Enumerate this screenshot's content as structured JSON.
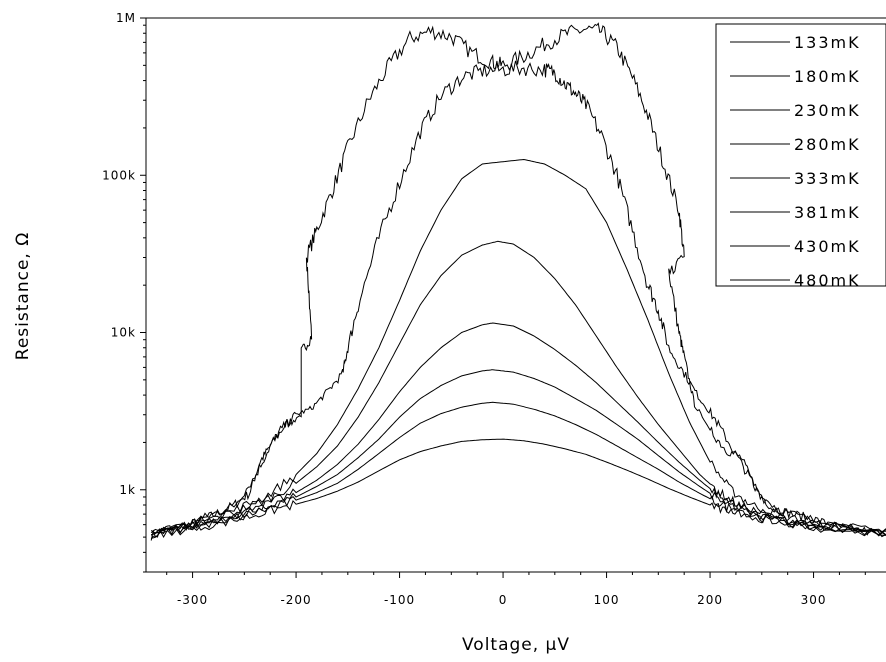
{
  "chart_data": {
    "type": "line",
    "xlabel": "Voltage, μV",
    "ylabel": "Resistance, Ω",
    "xlim": [
      -345,
      370
    ],
    "ylim": [
      300,
      1000000
    ],
    "y_scale": "log",
    "grid": false,
    "legend_position": "top-right",
    "line_color": "#000000",
    "x_ticks": [
      {
        "value": -300,
        "label": "-300"
      },
      {
        "value": -200,
        "label": "-200"
      },
      {
        "value": -100,
        "label": "-100"
      },
      {
        "value": 0,
        "label": "0"
      },
      {
        "value": 100,
        "label": "100"
      },
      {
        "value": 200,
        "label": "200"
      },
      {
        "value": 300,
        "label": "300"
      }
    ],
    "y_ticks": [
      {
        "value": 1000,
        "label": "1k"
      },
      {
        "value": 10000,
        "label": "10k"
      },
      {
        "value": 100000,
        "label": "100k"
      },
      {
        "value": 1000000,
        "label": "1M"
      }
    ],
    "series": [
      {
        "name": "133mK",
        "noisy_above": 3000,
        "points": [
          [
            -340,
            510
          ],
          [
            -320,
            560
          ],
          [
            -300,
            610
          ],
          [
            -280,
            690
          ],
          [
            -260,
            800
          ],
          [
            -245,
            950
          ],
          [
            -235,
            1500
          ],
          [
            -225,
            1900
          ],
          [
            -210,
            2600
          ],
          [
            -195,
            3000
          ],
          [
            -195,
            7500
          ],
          [
            -185,
            9500
          ],
          [
            -190,
            30000
          ],
          [
            -180,
            45000
          ],
          [
            -165,
            80000
          ],
          [
            -150,
            150000
          ],
          [
            -130,
            300000
          ],
          [
            -110,
            500000
          ],
          [
            -90,
            740000
          ],
          [
            -70,
            830000
          ],
          [
            -50,
            760000
          ],
          [
            -30,
            600000
          ],
          [
            -10,
            520000
          ],
          [
            0,
            500000
          ],
          [
            20,
            570000
          ],
          [
            40,
            680000
          ],
          [
            60,
            790000
          ],
          [
            80,
            850000
          ],
          [
            95,
            820000
          ],
          [
            110,
            650000
          ],
          [
            125,
            420000
          ],
          [
            140,
            240000
          ],
          [
            155,
            120000
          ],
          [
            170,
            60000
          ],
          [
            175,
            30000
          ],
          [
            160,
            25000
          ],
          [
            170,
            10000
          ],
          [
            175,
            7000
          ],
          [
            185,
            3500
          ],
          [
            200,
            2400
          ],
          [
            215,
            1800
          ],
          [
            230,
            1600
          ],
          [
            245,
            1000
          ],
          [
            260,
            760
          ],
          [
            280,
            700
          ],
          [
            300,
            650
          ],
          [
            320,
            590
          ],
          [
            340,
            560
          ],
          [
            370,
            520
          ]
        ]
      },
      {
        "name": "180mK",
        "noisy_above": 3000,
        "points": [
          [
            -340,
            520
          ],
          [
            -320,
            570
          ],
          [
            -300,
            620
          ],
          [
            -280,
            700
          ],
          [
            -260,
            790
          ],
          [
            -240,
            1200
          ],
          [
            -225,
            1900
          ],
          [
            -215,
            2400
          ],
          [
            -200,
            3000
          ],
          [
            -185,
            3300
          ],
          [
            -170,
            4200
          ],
          [
            -155,
            5500
          ],
          [
            -150,
            8000
          ],
          [
            -140,
            15000
          ],
          [
            -120,
            40000
          ],
          [
            -100,
            90000
          ],
          [
            -80,
            190000
          ],
          [
            -60,
            320000
          ],
          [
            -40,
            420000
          ],
          [
            -20,
            460000
          ],
          [
            0,
            470000
          ],
          [
            20,
            480000
          ],
          [
            40,
            470000
          ],
          [
            50,
            450000
          ],
          [
            60,
            380000
          ],
          [
            70,
            330000
          ],
          [
            80,
            280000
          ],
          [
            95,
            180000
          ],
          [
            110,
            100000
          ],
          [
            125,
            45000
          ],
          [
            140,
            20000
          ],
          [
            150,
            14000
          ],
          [
            160,
            8000
          ],
          [
            175,
            5500
          ],
          [
            190,
            3800
          ],
          [
            205,
            2800
          ],
          [
            220,
            1900
          ],
          [
            235,
            1300
          ],
          [
            250,
            900
          ],
          [
            270,
            730
          ],
          [
            300,
            640
          ],
          [
            330,
            580
          ],
          [
            370,
            530
          ]
        ]
      },
      {
        "name": "230mK",
        "points": [
          [
            -340,
            520
          ],
          [
            -300,
            610
          ],
          [
            -260,
            740
          ],
          [
            -230,
            900
          ],
          [
            -200,
            1250
          ],
          [
            -180,
            1700
          ],
          [
            -160,
            2600
          ],
          [
            -140,
            4400
          ],
          [
            -120,
            8000
          ],
          [
            -100,
            16000
          ],
          [
            -80,
            33000
          ],
          [
            -60,
            60000
          ],
          [
            -40,
            95000
          ],
          [
            -20,
            118000
          ],
          [
            0,
            122000
          ],
          [
            20,
            126000
          ],
          [
            40,
            118000
          ],
          [
            60,
            100000
          ],
          [
            80,
            82000
          ],
          [
            100,
            50000
          ],
          [
            120,
            25000
          ],
          [
            140,
            12000
          ],
          [
            160,
            5500
          ],
          [
            180,
            2700
          ],
          [
            200,
            1500
          ],
          [
            220,
            1000
          ],
          [
            240,
            800
          ],
          [
            270,
            680
          ],
          [
            310,
            590
          ],
          [
            370,
            530
          ]
        ]
      },
      {
        "name": "280mK",
        "points": [
          [
            -340,
            520
          ],
          [
            -300,
            600
          ],
          [
            -260,
            720
          ],
          [
            -230,
            860
          ],
          [
            -200,
            1100
          ],
          [
            -180,
            1400
          ],
          [
            -160,
            1900
          ],
          [
            -140,
            2900
          ],
          [
            -120,
            4800
          ],
          [
            -100,
            8500
          ],
          [
            -80,
            15000
          ],
          [
            -60,
            23000
          ],
          [
            -40,
            31000
          ],
          [
            -20,
            36000
          ],
          [
            -5,
            38000
          ],
          [
            10,
            36500
          ],
          [
            30,
            30000
          ],
          [
            50,
            22000
          ],
          [
            70,
            15000
          ],
          [
            90,
            9500
          ],
          [
            110,
            6000
          ],
          [
            130,
            3900
          ],
          [
            150,
            2600
          ],
          [
            170,
            1800
          ],
          [
            190,
            1250
          ],
          [
            210,
            950
          ],
          [
            230,
            780
          ],
          [
            260,
            680
          ],
          [
            300,
            600
          ],
          [
            370,
            530
          ]
        ]
      },
      {
        "name": "333mK",
        "points": [
          [
            -340,
            520
          ],
          [
            -300,
            590
          ],
          [
            -260,
            690
          ],
          [
            -230,
            800
          ],
          [
            -200,
            960
          ],
          [
            -180,
            1150
          ],
          [
            -160,
            1450
          ],
          [
            -140,
            1950
          ],
          [
            -120,
            2800
          ],
          [
            -100,
            4200
          ],
          [
            -80,
            6000
          ],
          [
            -60,
            8000
          ],
          [
            -40,
            10000
          ],
          [
            -20,
            11200
          ],
          [
            -10,
            11500
          ],
          [
            10,
            11000
          ],
          [
            30,
            9500
          ],
          [
            50,
            7800
          ],
          [
            70,
            6200
          ],
          [
            90,
            4800
          ],
          [
            110,
            3600
          ],
          [
            130,
            2700
          ],
          [
            150,
            2000
          ],
          [
            170,
            1500
          ],
          [
            190,
            1150
          ],
          [
            210,
            900
          ],
          [
            230,
            760
          ],
          [
            260,
            660
          ],
          [
            300,
            590
          ],
          [
            370,
            530
          ]
        ]
      },
      {
        "name": "381mK",
        "points": [
          [
            -340,
            520
          ],
          [
            -300,
            580
          ],
          [
            -260,
            670
          ],
          [
            -230,
            770
          ],
          [
            -200,
            900
          ],
          [
            -180,
            1050
          ],
          [
            -160,
            1250
          ],
          [
            -140,
            1600
          ],
          [
            -120,
            2100
          ],
          [
            -100,
            2900
          ],
          [
            -80,
            3800
          ],
          [
            -60,
            4600
          ],
          [
            -40,
            5300
          ],
          [
            -20,
            5700
          ],
          [
            -10,
            5800
          ],
          [
            10,
            5600
          ],
          [
            30,
            5100
          ],
          [
            50,
            4500
          ],
          [
            70,
            3800
          ],
          [
            90,
            3200
          ],
          [
            110,
            2600
          ],
          [
            130,
            2100
          ],
          [
            150,
            1650
          ],
          [
            170,
            1300
          ],
          [
            190,
            1050
          ],
          [
            210,
            860
          ],
          [
            230,
            740
          ],
          [
            260,
            650
          ],
          [
            300,
            580
          ],
          [
            370,
            530
          ]
        ]
      },
      {
        "name": "430mK",
        "points": [
          [
            -340,
            520
          ],
          [
            -300,
            580
          ],
          [
            -260,
            660
          ],
          [
            -230,
            750
          ],
          [
            -200,
            860
          ],
          [
            -180,
            960
          ],
          [
            -160,
            1100
          ],
          [
            -140,
            1350
          ],
          [
            -120,
            1700
          ],
          [
            -100,
            2150
          ],
          [
            -80,
            2650
          ],
          [
            -60,
            3050
          ],
          [
            -40,
            3350
          ],
          [
            -20,
            3550
          ],
          [
            -10,
            3600
          ],
          [
            10,
            3500
          ],
          [
            30,
            3250
          ],
          [
            50,
            2950
          ],
          [
            70,
            2600
          ],
          [
            90,
            2250
          ],
          [
            110,
            1900
          ],
          [
            130,
            1600
          ],
          [
            150,
            1350
          ],
          [
            170,
            1120
          ],
          [
            190,
            950
          ],
          [
            210,
            810
          ],
          [
            230,
            720
          ],
          [
            260,
            640
          ],
          [
            300,
            580
          ],
          [
            370,
            530
          ]
        ]
      },
      {
        "name": "480mK",
        "points": [
          [
            -340,
            520
          ],
          [
            -300,
            570
          ],
          [
            -260,
            640
          ],
          [
            -230,
            720
          ],
          [
            -200,
            810
          ],
          [
            -180,
            880
          ],
          [
            -160,
            980
          ],
          [
            -140,
            1120
          ],
          [
            -120,
            1320
          ],
          [
            -100,
            1550
          ],
          [
            -80,
            1750
          ],
          [
            -60,
            1900
          ],
          [
            -40,
            2030
          ],
          [
            -20,
            2080
          ],
          [
            0,
            2100
          ],
          [
            20,
            2050
          ],
          [
            40,
            1950
          ],
          [
            60,
            1820
          ],
          [
            80,
            1680
          ],
          [
            100,
            1500
          ],
          [
            120,
            1330
          ],
          [
            140,
            1170
          ],
          [
            160,
            1020
          ],
          [
            180,
            900
          ],
          [
            200,
            800
          ],
          [
            220,
            720
          ],
          [
            250,
            660
          ],
          [
            300,
            580
          ],
          [
            370,
            530
          ]
        ]
      }
    ]
  }
}
